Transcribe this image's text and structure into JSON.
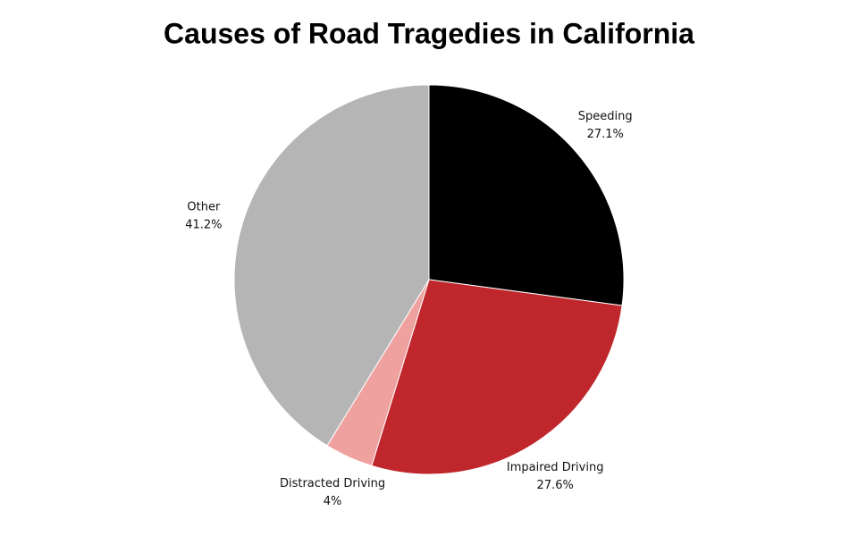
{
  "chart_data": {
    "type": "pie",
    "title": "Causes of Road Tragedies in California",
    "categories": [
      "Speeding",
      "Impaired Driving",
      "Distracted Driving",
      "Other"
    ],
    "values": [
      27.1,
      27.6,
      4,
      41.2
    ],
    "value_labels": [
      "27.1%",
      "27.6%",
      "4%",
      "41.2%"
    ],
    "colors": [
      "#000000",
      "#c0272d",
      "#eea19f",
      "#b5b5b5"
    ]
  }
}
